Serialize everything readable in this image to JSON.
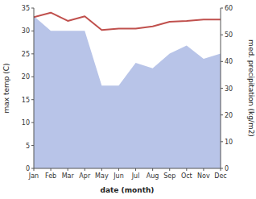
{
  "chart_data": {
    "type": "line",
    "x_label": "date (month)",
    "y_label": "max temp (C)",
    "y2_label": "med. precipitation (kg/m2)",
    "categories": [
      "Jan",
      "Feb",
      "Mar",
      "Apr",
      "May",
      "Jun",
      "Jul",
      "Aug",
      "Sep",
      "Oct",
      "Nov",
      "Dec"
    ],
    "series": [
      {
        "type": "area",
        "axis": "y2",
        "color": "#b8c4e8",
        "values": [
          57.0,
          51.5,
          51.5,
          51.5,
          31.0,
          31.0,
          39.5,
          37.5,
          43.0,
          46.0,
          41.0,
          43.0
        ]
      },
      {
        "type": "line",
        "color": "#c0504d",
        "values": [
          33.0,
          34.0,
          32.2,
          33.2,
          30.2,
          30.5,
          30.5,
          31.0,
          32.0,
          32.2,
          32.5,
          32.5
        ]
      }
    ],
    "ylim": [
      0,
      35
    ],
    "yticks": [
      0,
      5,
      10,
      15,
      20,
      25,
      30,
      35
    ],
    "y2lim": [
      0,
      60
    ],
    "y2ticks": [
      0,
      10,
      20,
      30,
      40,
      50,
      60
    ],
    "grid": false
  }
}
